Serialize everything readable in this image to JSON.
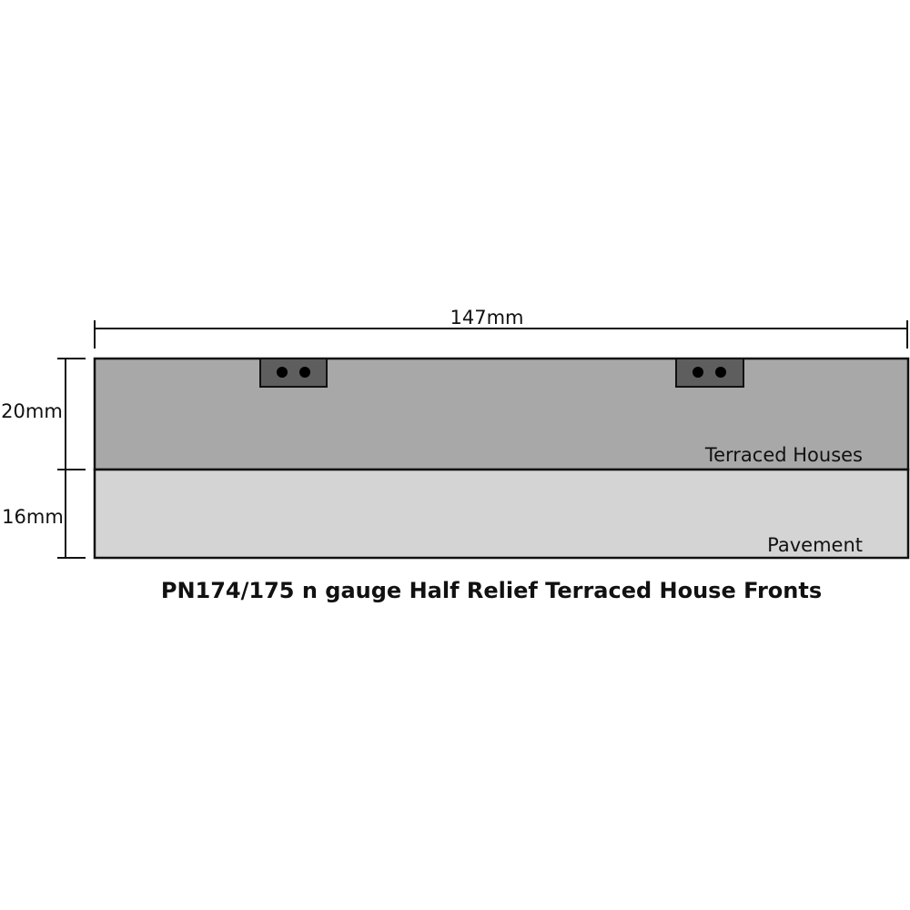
{
  "diagram": {
    "title": "PN174/175 n gauge Half Relief Terraced House Fronts",
    "width_label": "147mm",
    "upper_height_label": "20mm",
    "lower_height_label": "16mm",
    "upper_section_label": "Terraced Houses",
    "lower_section_label": "Pavement",
    "colors": {
      "upper_section": "#a8a8a8",
      "lower_section": "#d4d4d4",
      "connector": "#5e5e5e",
      "outline": "#111111"
    }
  }
}
